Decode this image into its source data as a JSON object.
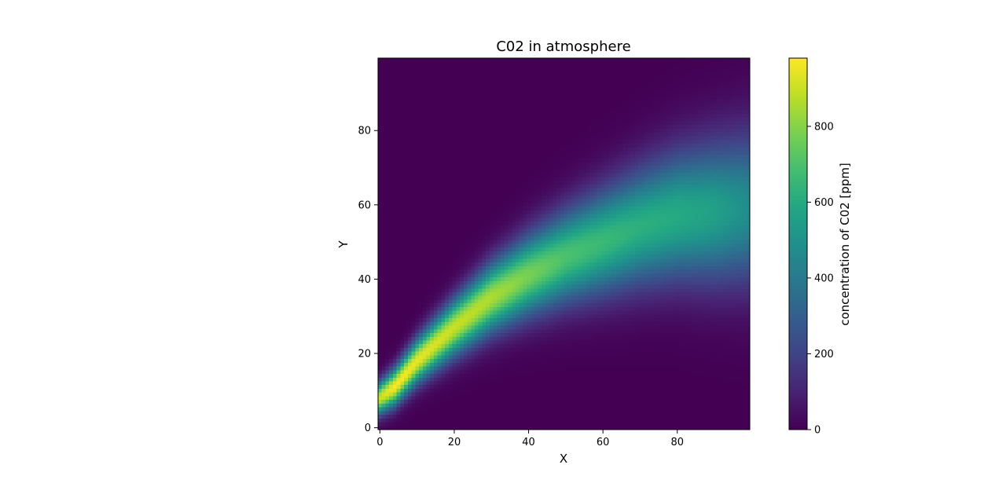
{
  "chart_data": {
    "type": "heatmap",
    "title": "C02 in atmosphere",
    "xlabel": "X",
    "ylabel": "Y",
    "xlim": [
      0,
      99
    ],
    "ylim": [
      0,
      99
    ],
    "x_ticks": [
      0,
      20,
      40,
      60,
      80
    ],
    "y_ticks": [
      0,
      20,
      40,
      60,
      80
    ],
    "colormap": "viridis",
    "colorbar": {
      "label": "concentration of C02 [ppm]",
      "range": [
        0,
        980
      ],
      "ticks": [
        0,
        200,
        400,
        600,
        800
      ]
    },
    "plume_profile": {
      "description": "ridge of maximum concentration (x, y_center, peak value)",
      "points": [
        {
          "x": 0,
          "y_center": 8,
          "peak": 900
        },
        {
          "x": 4,
          "y_center": 11,
          "peak": 980
        },
        {
          "x": 10,
          "y_center": 18,
          "peak": 950
        },
        {
          "x": 20,
          "y_center": 27,
          "peak": 900
        },
        {
          "x": 30,
          "y_center": 35,
          "peak": 860
        },
        {
          "x": 40,
          "y_center": 41,
          "peak": 780
        },
        {
          "x": 50,
          "y_center": 46,
          "peak": 700
        },
        {
          "x": 60,
          "y_center": 50,
          "peak": 660
        },
        {
          "x": 70,
          "y_center": 54,
          "peak": 620
        },
        {
          "x": 80,
          "y_center": 57,
          "peak": 600
        },
        {
          "x": 90,
          "y_center": 58,
          "peak": 560
        },
        {
          "x": 99,
          "y_center": 59,
          "peak": 480
        }
      ]
    }
  }
}
